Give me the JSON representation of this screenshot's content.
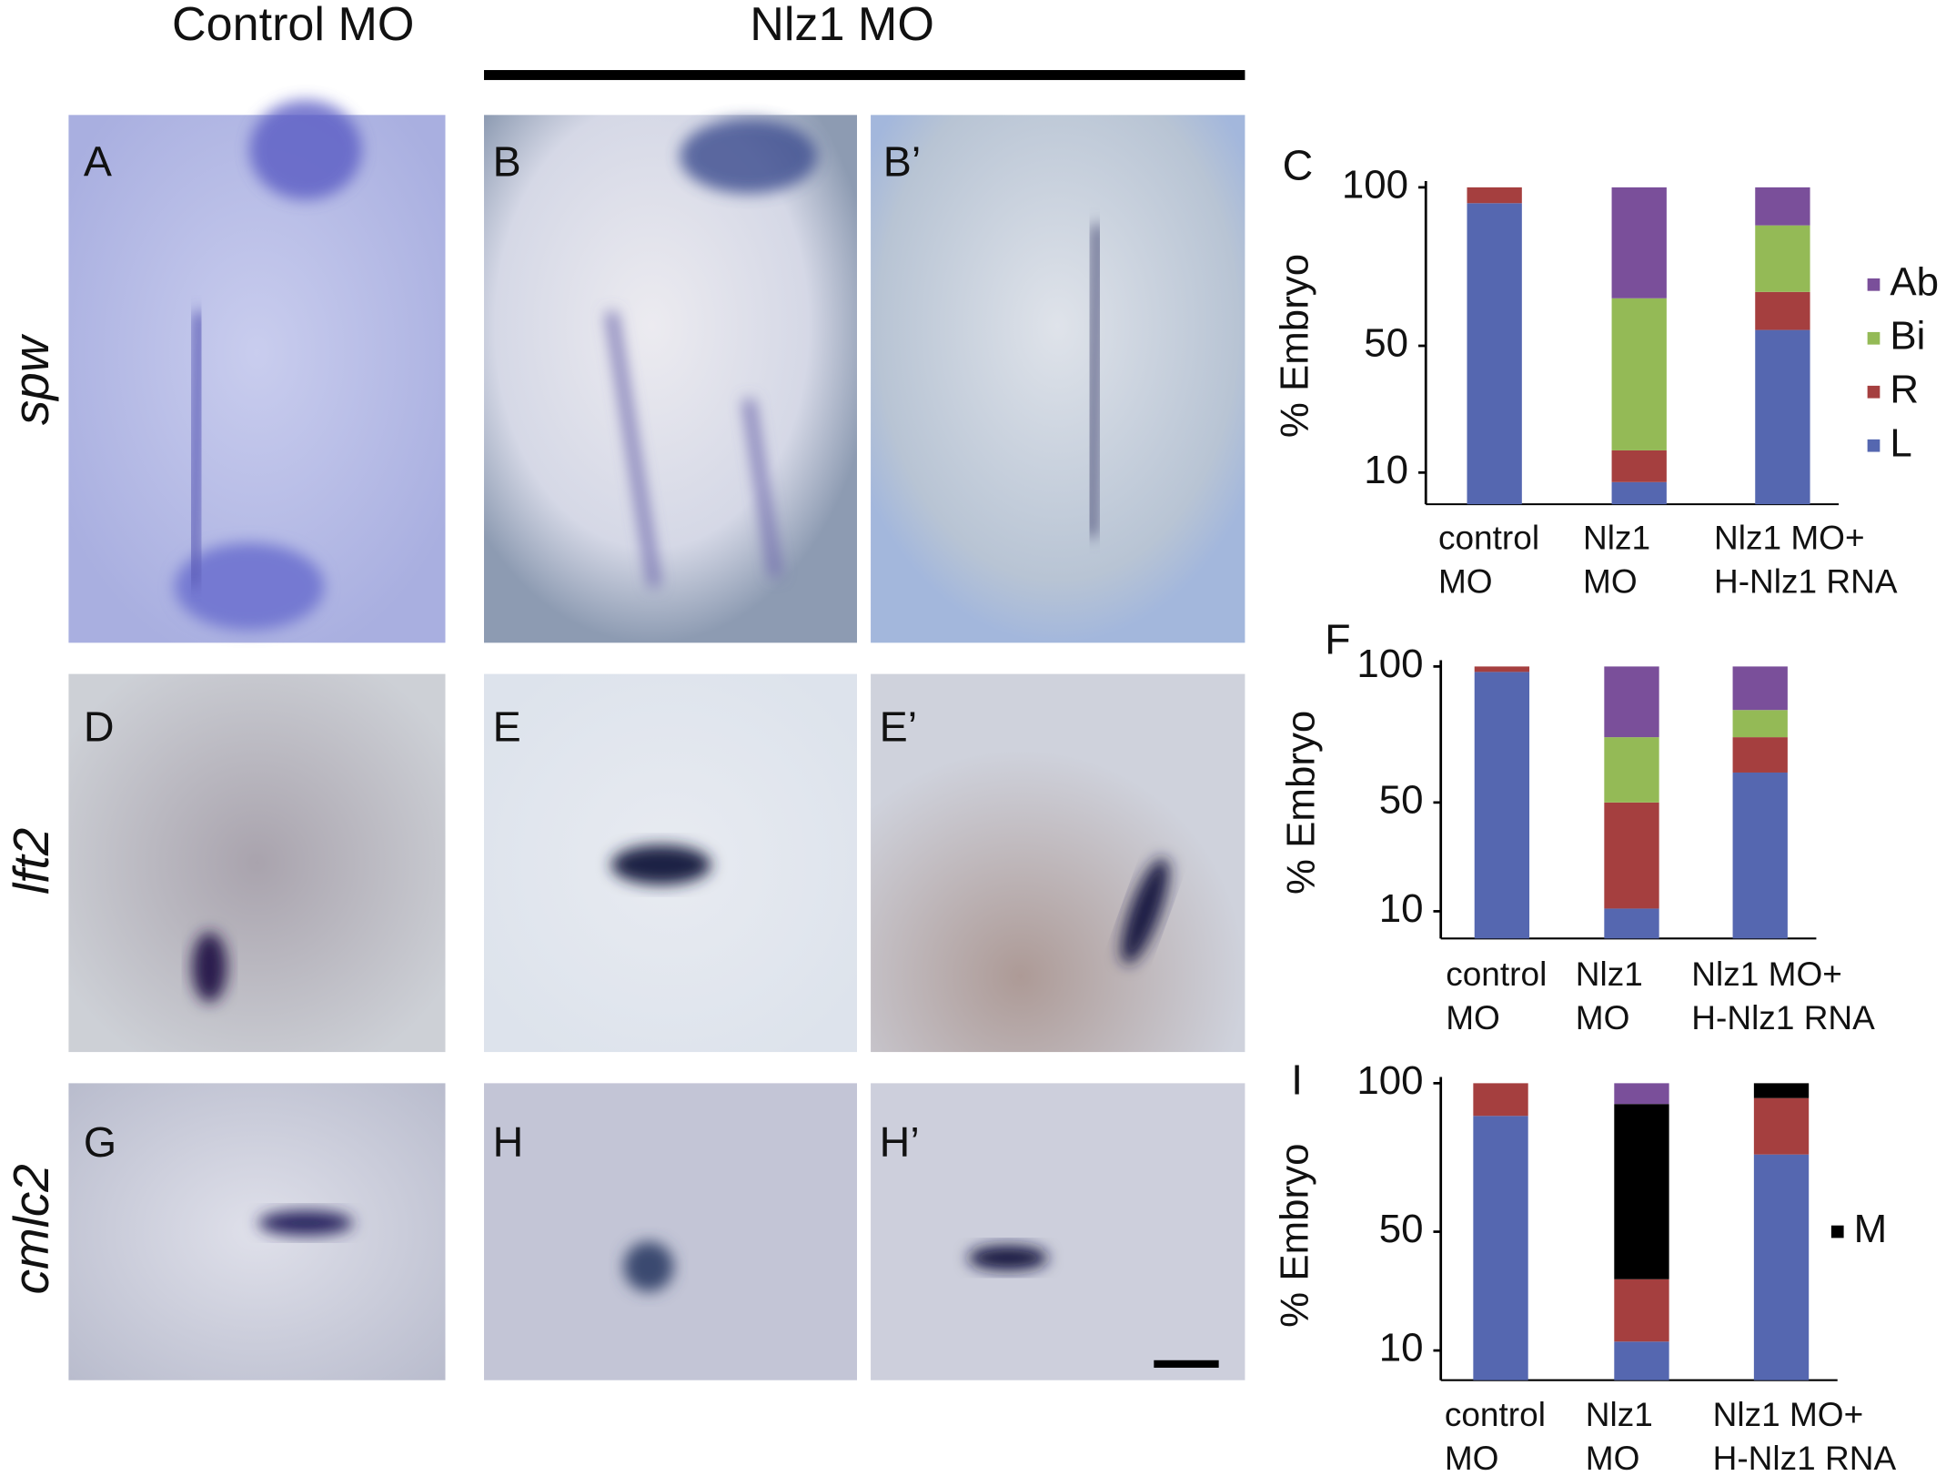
{
  "figure": {
    "column_headers": [
      "Control MO",
      "Nlz1 MO"
    ],
    "row_labels": [
      "spw",
      "lft2",
      "cmlc2"
    ],
    "panel_labels": [
      "A",
      "B",
      "B’",
      "D",
      "E",
      "E’",
      "G",
      "H",
      "H’"
    ]
  },
  "chart_data": [
    {
      "type": "bar",
      "stacked": true,
      "panel": "C",
      "ylabel": "% Embryo",
      "categories": [
        [
          "control",
          "MO"
        ],
        [
          "Nlz1",
          "MO"
        ],
        [
          "Nlz1 MO+",
          "H-Nlz1 RNA"
        ]
      ],
      "ylim": [
        0,
        100
      ],
      "yticks": [
        10,
        50,
        100
      ],
      "series": [
        {
          "name": "L",
          "color": "#5567b0",
          "values": [
            95,
            7,
            55
          ]
        },
        {
          "name": "R",
          "color": "#a53f3f",
          "values": [
            5,
            10,
            12
          ]
        },
        {
          "name": "Bi",
          "color": "#94ba56",
          "values": [
            0,
            48,
            21
          ]
        },
        {
          "name": "Ab",
          "color": "#7a4f9a",
          "values": [
            0,
            35,
            12
          ]
        }
      ]
    },
    {
      "type": "bar",
      "stacked": true,
      "panel": "F",
      "ylabel": "% Embryo",
      "categories": [
        [
          "control",
          "MO"
        ],
        [
          "Nlz1",
          "MO"
        ],
        [
          "Nlz1 MO+",
          "H-Nlz1 RNA"
        ]
      ],
      "ylim": [
        0,
        100
      ],
      "yticks": [
        10,
        50,
        100
      ],
      "series": [
        {
          "color": "#5567b0",
          "values": [
            98,
            11,
            61
          ]
        },
        {
          "color": "#a53f3f",
          "values": [
            2,
            39,
            13
          ]
        },
        {
          "color": "#94ba56",
          "values": [
            0,
            24,
            10
          ]
        },
        {
          "color": "#7a4f9a",
          "values": [
            0,
            26,
            16
          ]
        }
      ]
    },
    {
      "type": "bar",
      "stacked": true,
      "panel": "I",
      "ylabel": "% Embryo",
      "categories": [
        [
          "control",
          "MO"
        ],
        [
          "Nlz1",
          "MO"
        ],
        [
          "Nlz1 MO+",
          "H-Nlz1 RNA"
        ]
      ],
      "ylim": [
        0,
        100
      ],
      "yticks": [
        10,
        50,
        100
      ],
      "series": [
        {
          "color": "#5567b0",
          "values": [
            89,
            13,
            76
          ]
        },
        {
          "color": "#a53f3f",
          "values": [
            11,
            21,
            19
          ]
        },
        {
          "name": "M",
          "color": "#000000",
          "values": [
            0,
            59,
            5
          ]
        },
        {
          "color": "#7a4f9a",
          "values": [
            0,
            7,
            0
          ]
        }
      ]
    }
  ]
}
